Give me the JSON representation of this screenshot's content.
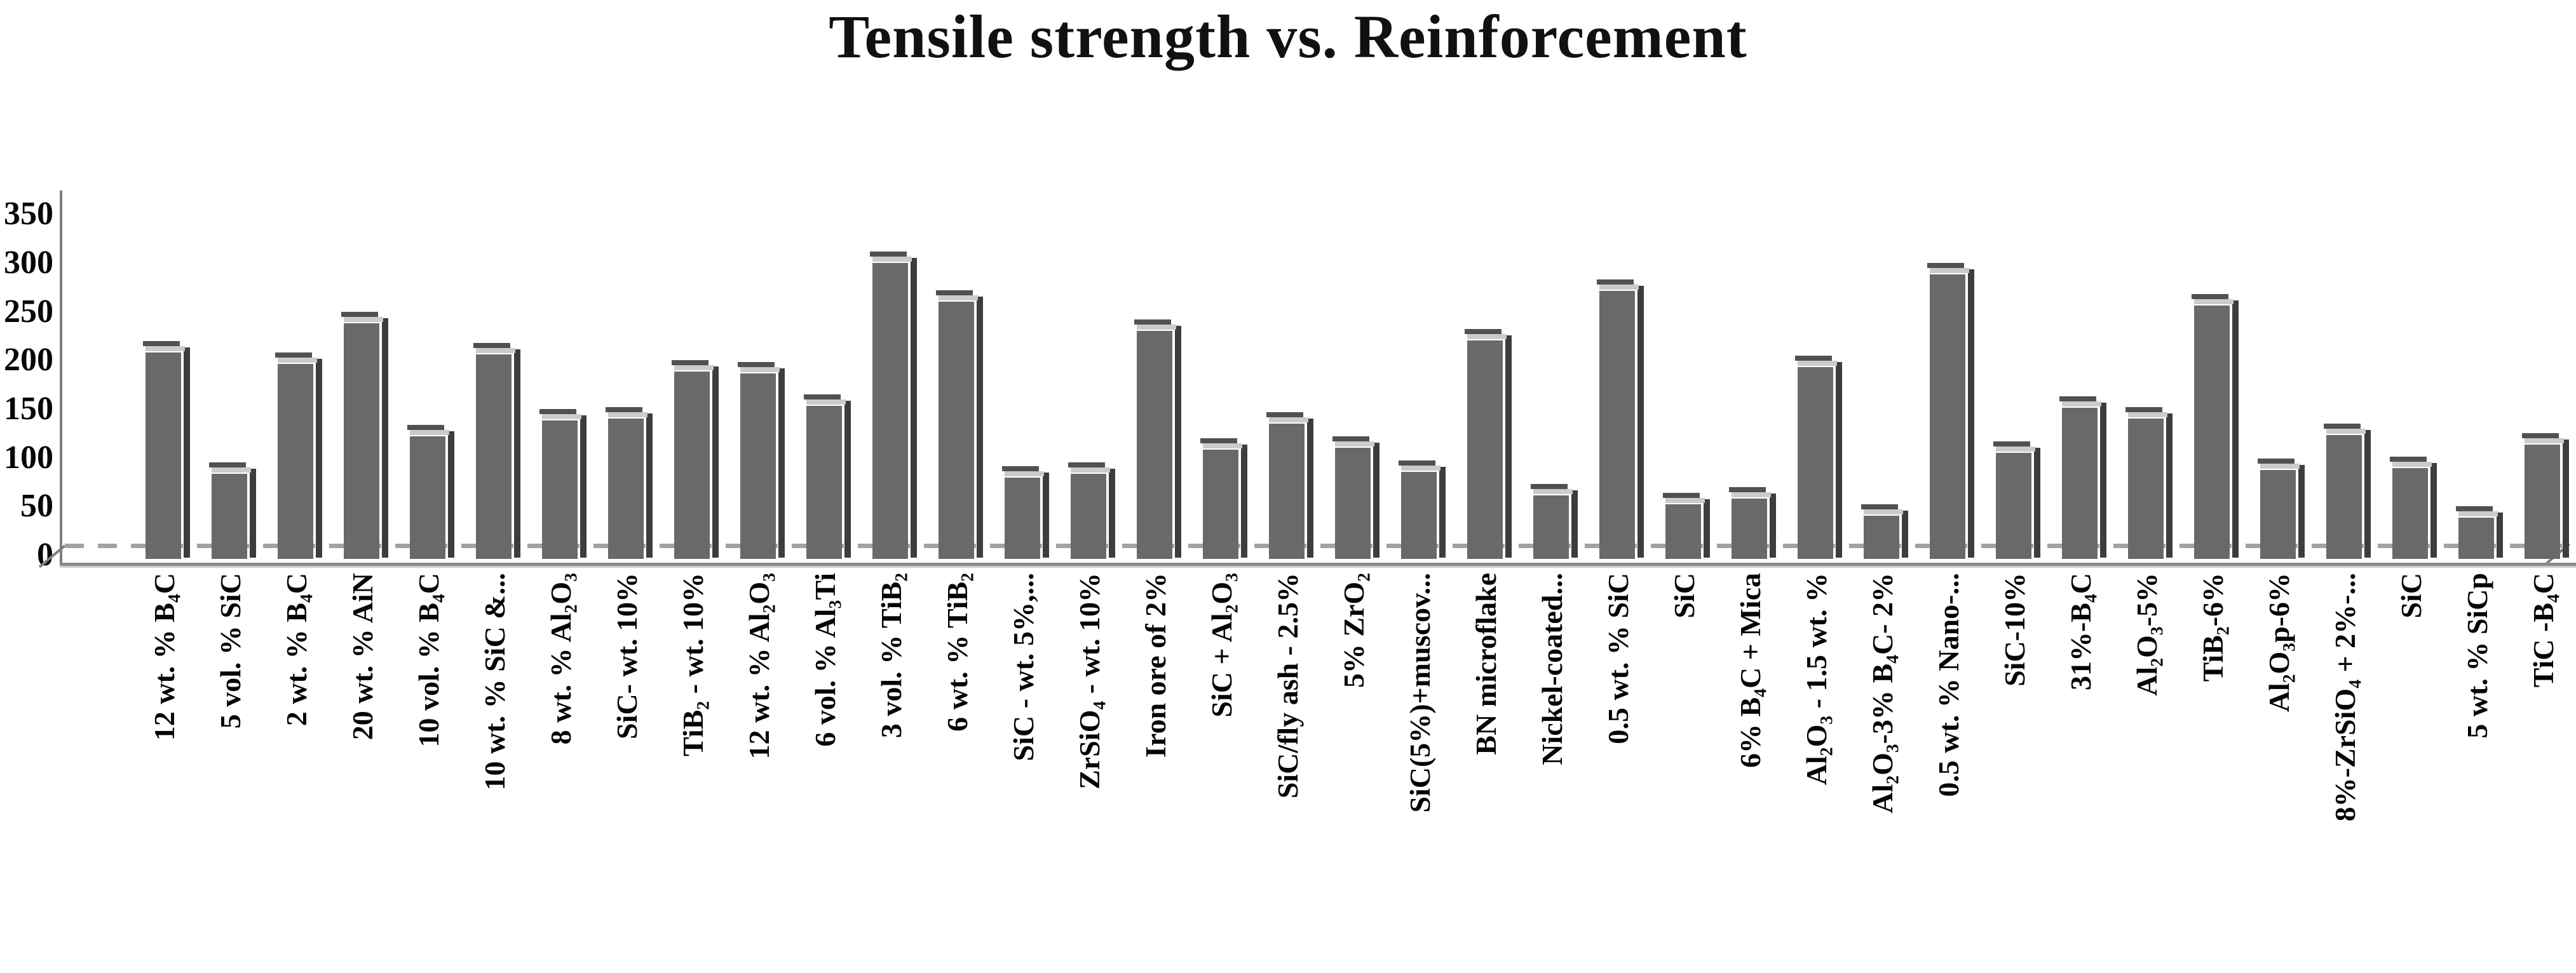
{
  "title": "Tensile strength vs. Reinforcement",
  "chart_data": {
    "type": "bar",
    "style": "3d-column",
    "title": "Tensile strength vs. Reinforcement",
    "xlabel": "",
    "ylabel": "",
    "ylim": [
      0,
      350
    ],
    "yticks": [
      0,
      50,
      100,
      150,
      200,
      250,
      300,
      350
    ],
    "grid": false,
    "legend": false,
    "bar_color": "#696969",
    "bar_side_color": "#3d3d3d",
    "bar_cap_light_color": "#cbcbcb",
    "bar_cap_dark_color": "#515151",
    "axis_color": "#7d7d7d",
    "floor_dash_color": "#a2a2a2",
    "categories": [
      "12 wt. % B₄C",
      "5 vol. % SiC",
      "2 wt. % B₄C",
      "20 wt. % AiN",
      "10 vol. % B₄C",
      "10 wt. % SiC &...",
      "8 wt. % Al₂O₃",
      "SiC- wt. 10%",
      "TiB₂ - wt. 10%",
      "12 wt. % Al₂O₃",
      "6 vol. % Al₃Ti",
      "3 vol. % TiB₂",
      "6 wt. % TiB₂",
      "SiC - wt. 5%,...",
      "ZrSiO₄ - wt. 10%",
      "Iron ore of 2%",
      "SiC + Al₂O₃",
      "SiC/fly ash - 2.5%",
      "5% ZrO₂",
      "SiC(5%)+muscov...",
      "BN microflake",
      "Nickel-coated...",
      "0.5 wt. % SiC",
      "SiC",
      "6% B₄C + Mica",
      "Al₂O₃ - 1.5 wt. %",
      "Al₂O₃-3% B₄C- 2%",
      "0.5 wt. % Nano-...",
      "SiC-10%",
      "31%-B₄C",
      "Al₂O₃-5%",
      "TiB₂-6%",
      "Al₂O₃p-6%",
      "8%-ZrSiO₄ + 2%-...",
      "SiC",
      "5 wt. % SiCp",
      "TiC -B₄C"
    ],
    "values": [
      220,
      95,
      208,
      250,
      134,
      218,
      150,
      152,
      200,
      198,
      165,
      312,
      272,
      91,
      95,
      242,
      120,
      147,
      122,
      97,
      232,
      73,
      283,
      64,
      70,
      205,
      52,
      300,
      117,
      163,
      152,
      268,
      99,
      135,
      101,
      50,
      125
    ]
  }
}
